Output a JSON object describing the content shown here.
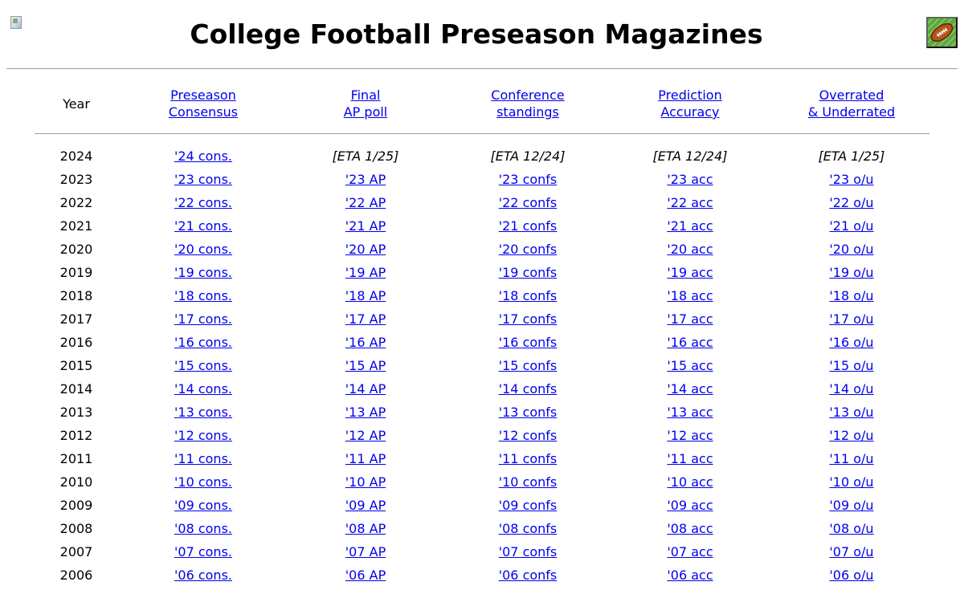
{
  "page": {
    "title": "College Football Preseason Magazines"
  },
  "header": {
    "year": "Year",
    "cols": [
      [
        "Preseason",
        "Consensus"
      ],
      [
        "Final",
        "AP poll"
      ],
      [
        "Conference",
        "standings"
      ],
      [
        "Prediction",
        "Accuracy"
      ],
      [
        "Overrated",
        "& Underrated"
      ]
    ]
  },
  "colors": {
    "link": "#0000ee",
    "rule": "#9a9a9a",
    "logo_green": "#5fa83f",
    "football_brown": "#b5541c"
  },
  "icons": {
    "broken_image": "broken-image-icon",
    "logo": "football-icon"
  },
  "rows": [
    {
      "year": "2024",
      "cells": [
        {
          "text": "'24 cons.",
          "link": true
        },
        {
          "text": "[ETA 1/25]",
          "link": false
        },
        {
          "text": "[ETA 12/24]",
          "link": false
        },
        {
          "text": "[ETA 12/24]",
          "link": false
        },
        {
          "text": "[ETA 1/25]",
          "link": false
        }
      ]
    },
    {
      "year": "2023",
      "cells": [
        {
          "text": "'23 cons.",
          "link": true
        },
        {
          "text": "'23 AP",
          "link": true
        },
        {
          "text": "'23 confs",
          "link": true
        },
        {
          "text": "'23 acc",
          "link": true
        },
        {
          "text": "'23 o/u",
          "link": true
        }
      ]
    },
    {
      "year": "2022",
      "cells": [
        {
          "text": "'22 cons.",
          "link": true
        },
        {
          "text": "'22 AP",
          "link": true
        },
        {
          "text": "'22 confs",
          "link": true
        },
        {
          "text": "'22 acc",
          "link": true
        },
        {
          "text": "'22 o/u",
          "link": true
        }
      ]
    },
    {
      "year": "2021",
      "cells": [
        {
          "text": "'21 cons.",
          "link": true
        },
        {
          "text": "'21 AP",
          "link": true
        },
        {
          "text": "'21 confs",
          "link": true
        },
        {
          "text": "'21 acc",
          "link": true
        },
        {
          "text": "'21 o/u",
          "link": true
        }
      ]
    },
    {
      "year": "2020",
      "cells": [
        {
          "text": "'20 cons.",
          "link": true
        },
        {
          "text": "'20 AP",
          "link": true
        },
        {
          "text": "'20 confs",
          "link": true
        },
        {
          "text": "'20 acc",
          "link": true
        },
        {
          "text": "'20 o/u",
          "link": true
        }
      ]
    },
    {
      "year": "2019",
      "cells": [
        {
          "text": "'19 cons.",
          "link": true
        },
        {
          "text": "'19 AP",
          "link": true
        },
        {
          "text": "'19 confs",
          "link": true
        },
        {
          "text": "'19 acc",
          "link": true
        },
        {
          "text": "'19 o/u",
          "link": true
        }
      ]
    },
    {
      "year": "2018",
      "cells": [
        {
          "text": "'18 cons.",
          "link": true
        },
        {
          "text": "'18 AP",
          "link": true
        },
        {
          "text": "'18 confs",
          "link": true
        },
        {
          "text": "'18 acc",
          "link": true
        },
        {
          "text": "'18 o/u",
          "link": true
        }
      ]
    },
    {
      "year": "2017",
      "cells": [
        {
          "text": "'17 cons.",
          "link": true
        },
        {
          "text": "'17 AP",
          "link": true
        },
        {
          "text": "'17 confs",
          "link": true
        },
        {
          "text": "'17 acc",
          "link": true
        },
        {
          "text": "'17 o/u",
          "link": true
        }
      ]
    },
    {
      "year": "2016",
      "cells": [
        {
          "text": "'16 cons.",
          "link": true
        },
        {
          "text": "'16 AP",
          "link": true
        },
        {
          "text": "'16 confs",
          "link": true
        },
        {
          "text": "'16 acc",
          "link": true
        },
        {
          "text": "'16 o/u",
          "link": true
        }
      ]
    },
    {
      "year": "2015",
      "cells": [
        {
          "text": "'15 cons.",
          "link": true
        },
        {
          "text": "'15 AP",
          "link": true
        },
        {
          "text": "'15 confs",
          "link": true
        },
        {
          "text": "'15 acc",
          "link": true
        },
        {
          "text": "'15 o/u",
          "link": true
        }
      ]
    },
    {
      "year": "2014",
      "cells": [
        {
          "text": "'14 cons.",
          "link": true
        },
        {
          "text": "'14 AP",
          "link": true
        },
        {
          "text": "'14 confs",
          "link": true
        },
        {
          "text": "'14 acc",
          "link": true
        },
        {
          "text": "'14 o/u",
          "link": true
        }
      ]
    },
    {
      "year": "2013",
      "cells": [
        {
          "text": "'13 cons.",
          "link": true
        },
        {
          "text": "'13 AP",
          "link": true
        },
        {
          "text": "'13 confs",
          "link": true
        },
        {
          "text": "'13 acc",
          "link": true
        },
        {
          "text": "'13 o/u",
          "link": true
        }
      ]
    },
    {
      "year": "2012",
      "cells": [
        {
          "text": "'12 cons.",
          "link": true
        },
        {
          "text": "'12 AP",
          "link": true
        },
        {
          "text": "'12 confs",
          "link": true
        },
        {
          "text": "'12 acc",
          "link": true
        },
        {
          "text": "'12 o/u",
          "link": true
        }
      ]
    },
    {
      "year": "2011",
      "cells": [
        {
          "text": "'11 cons.",
          "link": true
        },
        {
          "text": "'11 AP",
          "link": true
        },
        {
          "text": "'11 confs",
          "link": true
        },
        {
          "text": "'11 acc",
          "link": true
        },
        {
          "text": "'11 o/u",
          "link": true
        }
      ]
    },
    {
      "year": "2010",
      "cells": [
        {
          "text": "'10 cons.",
          "link": true
        },
        {
          "text": "'10 AP",
          "link": true
        },
        {
          "text": "'10 confs",
          "link": true
        },
        {
          "text": "'10 acc",
          "link": true
        },
        {
          "text": "'10 o/u",
          "link": true
        }
      ]
    },
    {
      "year": "2009",
      "cells": [
        {
          "text": "'09 cons.",
          "link": true
        },
        {
          "text": "'09 AP",
          "link": true
        },
        {
          "text": "'09 confs",
          "link": true
        },
        {
          "text": "'09 acc",
          "link": true
        },
        {
          "text": "'09 o/u",
          "link": true
        }
      ]
    },
    {
      "year": "2008",
      "cells": [
        {
          "text": "'08 cons.",
          "link": true
        },
        {
          "text": "'08 AP",
          "link": true
        },
        {
          "text": "'08 confs",
          "link": true
        },
        {
          "text": "'08 acc",
          "link": true
        },
        {
          "text": "'08 o/u",
          "link": true
        }
      ]
    },
    {
      "year": "2007",
      "cells": [
        {
          "text": "'07 cons.",
          "link": true
        },
        {
          "text": "'07 AP",
          "link": true
        },
        {
          "text": "'07 confs",
          "link": true
        },
        {
          "text": "'07 acc",
          "link": true
        },
        {
          "text": "'07 o/u",
          "link": true
        }
      ]
    },
    {
      "year": "2006",
      "cells": [
        {
          "text": "'06 cons.",
          "link": true
        },
        {
          "text": "'06 AP",
          "link": true
        },
        {
          "text": "'06 confs",
          "link": true
        },
        {
          "text": "'06 acc",
          "link": true
        },
        {
          "text": "'06 o/u",
          "link": true
        }
      ]
    }
  ]
}
